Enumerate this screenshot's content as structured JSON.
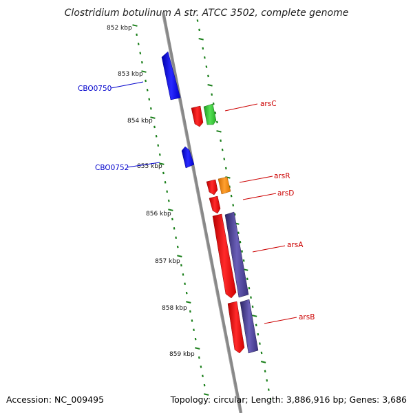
{
  "title": "Clostridium botulinum A str. ATCC 3502, complete genome",
  "footer": {
    "accession": "Accession: NC_009495",
    "topology": "Topology: circular; Length: 3,886,916 bp; Genes: 3,686"
  },
  "scale_labels": [
    "852 kbp",
    "853 kbp",
    "854 kbp",
    "855 kbp",
    "856 kbp",
    "857 kbp",
    "858 kbp",
    "859 kbp"
  ],
  "genes": [
    {
      "name": "CBO0750",
      "label_color": "#0000cc",
      "fill": "#0000ff"
    },
    {
      "name": "arsC",
      "label_color": "#cc0000",
      "fill": "#33cc33"
    },
    {
      "name": "CBO0752",
      "label_color": "#0000cc",
      "fill": "#0000ff"
    },
    {
      "name": "arsR",
      "label_color": "#cc0000",
      "fill": "#ff8c00"
    },
    {
      "name": "arsD",
      "label_color": "#cc0000",
      "fill": "#ff0000"
    },
    {
      "name": "arsA",
      "label_color": "#cc0000",
      "fill": "#483d8b"
    },
    {
      "name": "arsB",
      "label_color": "#cc0000",
      "fill": "#483d8b"
    }
  ],
  "colors": {
    "backbone": "#888888",
    "scale_ticks": "#1a7f1a",
    "forward": "#0000ff",
    "reverse": "#ff0000"
  }
}
